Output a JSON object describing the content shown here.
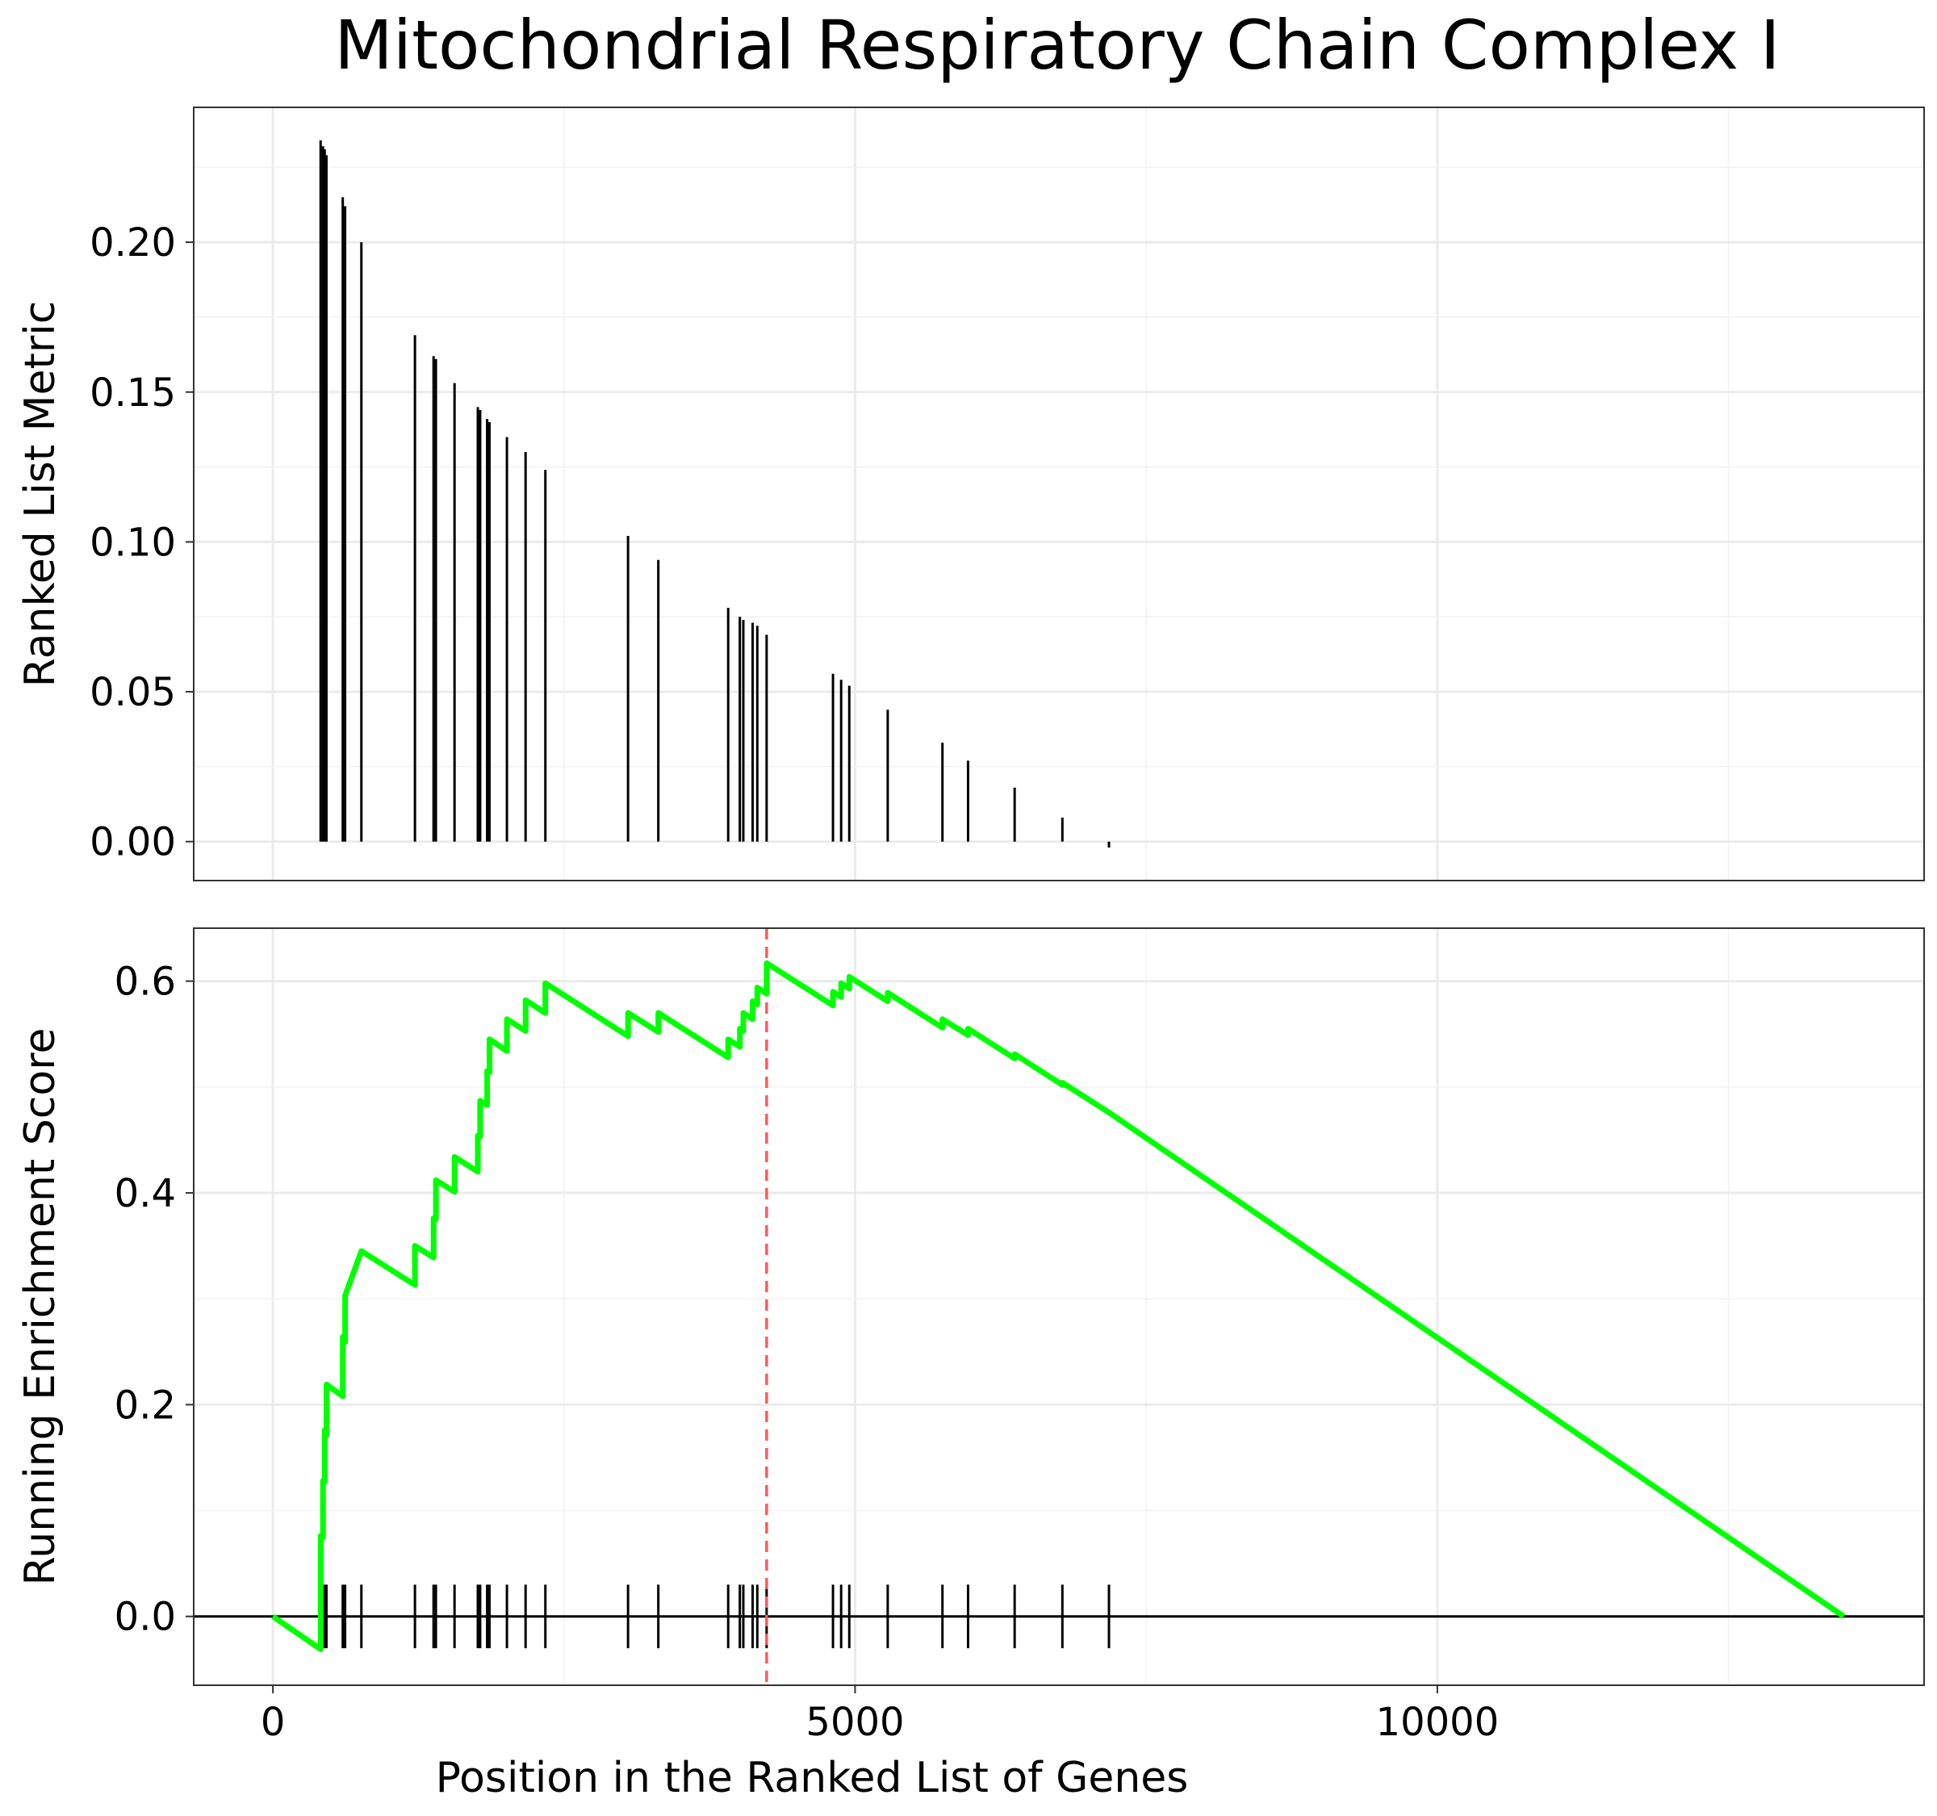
{
  "chart_data": {
    "type": "line",
    "title": "Mitochondrial Respiratory Chain Complex I",
    "xlabel": "Position in the Ranked List of Genes",
    "xlim": [
      -680,
      14180
    ],
    "x_ticks": [
      0,
      5000,
      10000
    ],
    "x_tick_labels": [
      "0",
      "5000",
      "10000"
    ],
    "grid": true,
    "colors": {
      "es_line": "#00ff00",
      "peak_line": "#ff5a5a",
      "metric_bars": "#000000"
    },
    "top_panel": {
      "type": "bar",
      "ylabel": "Ranked List Metric",
      "ylim": [
        -0.013,
        0.245
      ],
      "y_ticks": [
        0.0,
        0.05,
        0.1,
        0.15,
        0.2
      ],
      "y_tick_labels": [
        "0.00",
        "0.05",
        "0.10",
        "0.15",
        "0.20"
      ],
      "hits": [
        {
          "x": 410,
          "value": 0.234
        },
        {
          "x": 430,
          "value": 0.232
        },
        {
          "x": 445,
          "value": 0.231
        },
        {
          "x": 460,
          "value": 0.229
        },
        {
          "x": 600,
          "value": 0.215
        },
        {
          "x": 620,
          "value": 0.212
        },
        {
          "x": 760,
          "value": 0.2
        },
        {
          "x": 1220,
          "value": 0.169
        },
        {
          "x": 1380,
          "value": 0.162
        },
        {
          "x": 1400,
          "value": 0.161
        },
        {
          "x": 1560,
          "value": 0.153
        },
        {
          "x": 1760,
          "value": 0.145
        },
        {
          "x": 1780,
          "value": 0.144
        },
        {
          "x": 1840,
          "value": 0.141
        },
        {
          "x": 1860,
          "value": 0.14
        },
        {
          "x": 2010,
          "value": 0.135
        },
        {
          "x": 2170,
          "value": 0.13
        },
        {
          "x": 2340,
          "value": 0.124
        },
        {
          "x": 3050,
          "value": 0.102
        },
        {
          "x": 3310,
          "value": 0.094
        },
        {
          "x": 3910,
          "value": 0.078
        },
        {
          "x": 4010,
          "value": 0.075
        },
        {
          "x": 4040,
          "value": 0.074
        },
        {
          "x": 4120,
          "value": 0.073
        },
        {
          "x": 4160,
          "value": 0.072
        },
        {
          "x": 4240,
          "value": 0.069
        },
        {
          "x": 4810,
          "value": 0.056
        },
        {
          "x": 4880,
          "value": 0.054
        },
        {
          "x": 4950,
          "value": 0.052
        },
        {
          "x": 5280,
          "value": 0.044
        },
        {
          "x": 5750,
          "value": 0.033
        },
        {
          "x": 5970,
          "value": 0.027
        },
        {
          "x": 6370,
          "value": 0.018
        },
        {
          "x": 6780,
          "value": 0.008
        },
        {
          "x": 7180,
          "value": -0.002
        }
      ]
    },
    "bottom_panel": {
      "type": "line",
      "ylabel": "Running Enrichment Score",
      "ylim": [
        -0.065,
        0.65
      ],
      "y_ticks": [
        0.0,
        0.2,
        0.4,
        0.6
      ],
      "y_tick_labels": [
        "0.0",
        "0.2",
        "0.4",
        "0.6"
      ],
      "zero_line": 0,
      "peak_x": 4240,
      "peak_score": 0.617,
      "end_x": 13490,
      "series": [
        {
          "x": [
            0,
            410,
            410,
            430,
            430,
            445,
            445,
            460,
            460,
            600,
            600,
            620,
            620,
            760,
            760,
            1220,
            1220,
            1380,
            1380,
            1400,
            1400,
            1560,
            1560,
            1760,
            1760,
            1780,
            1780,
            1840,
            1840,
            1860,
            1860,
            2010,
            2010,
            2170,
            2170,
            2340,
            2340,
            3050,
            3050,
            3310,
            3310,
            3910,
            3910,
            4010,
            4010,
            4040,
            4040,
            4120,
            4120,
            4160,
            4160,
            4240,
            4240,
            4810,
            4810,
            4880,
            4880,
            4950,
            4950,
            5280,
            5280,
            5750,
            5750,
            5970,
            5970,
            6370,
            6370,
            6780,
            6780,
            7180,
            7180,
            13490
          ],
          "y": [
            0,
            -0.031,
            0.076,
            0.075,
            0.128,
            0.127,
            0.176,
            0.171,
            0.219,
            0.208,
            0.264,
            0.259,
            0.303,
            0.345,
            0.345,
            0.313,
            0.35,
            0.339,
            0.376,
            0.375,
            0.412,
            0.401,
            0.434,
            0.42,
            0.454,
            0.453,
            0.487,
            0.483,
            0.515,
            0.514,
            0.545,
            0.534,
            0.564,
            0.553,
            0.582,
            0.57,
            0.598,
            0.548,
            0.57,
            0.552,
            0.57,
            0.528,
            0.545,
            0.538,
            0.555,
            0.553,
            0.57,
            0.564,
            0.581,
            0.578,
            0.594,
            0.588,
            0.617,
            0.577,
            0.59,
            0.585,
            0.598,
            0.593,
            0.604,
            0.581,
            0.589,
            0.556,
            0.564,
            0.549,
            0.555,
            0.527,
            0.531,
            0.502,
            0.504,
            0.476,
            0.476,
            0.0
          ]
        }
      ]
    }
  }
}
